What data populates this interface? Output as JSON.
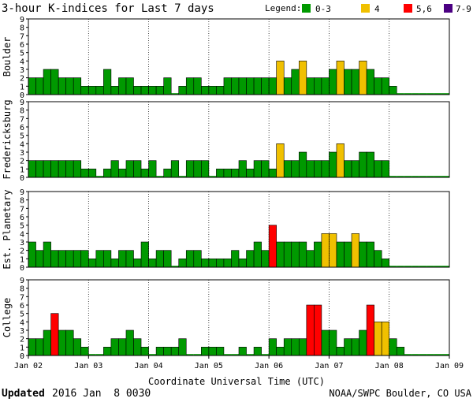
{
  "header": {
    "title": "3-hour K-indices for Last 7 days",
    "legend_label": "Legend:",
    "legend": [
      {
        "label": "0-3",
        "color": "#009900"
      },
      {
        "label": "4",
        "color": "#f0c000"
      },
      {
        "label": "5,6",
        "color": "#ff0000"
      },
      {
        "label": "7-9",
        "color": "#4b0082"
      }
    ]
  },
  "footer": {
    "updated_label": "Updated",
    "updated_value": "2016 Jan  8 0030",
    "credit": "NOAA/SWPC Boulder, CO USA"
  },
  "chart_data": {
    "type": "bar",
    "xlabel": "Coordinate Universal Time (UTC)",
    "x_ticks": [
      "Jan 02",
      "Jan 03",
      "Jan 04",
      "Jan 05",
      "Jan 06",
      "Jan 07",
      "Jan 08",
      "Jan 09"
    ],
    "ylim": [
      0,
      9
    ],
    "y_ticks": [
      0,
      1,
      2,
      3,
      4,
      5,
      6,
      7,
      8,
      9
    ],
    "panels": [
      {
        "name": "Boulder",
        "values": [
          2,
          2,
          3,
          3,
          2,
          2,
          2,
          1,
          1,
          1,
          3,
          1,
          2,
          2,
          1,
          1,
          1,
          1,
          2,
          0,
          1,
          2,
          2,
          1,
          1,
          1,
          2,
          2,
          2,
          2,
          2,
          2,
          2,
          4,
          2,
          3,
          4,
          2,
          2,
          2,
          3,
          4,
          3,
          3,
          4,
          3,
          2,
          2,
          1,
          0,
          0,
          0,
          0,
          0,
          0,
          0
        ]
      },
      {
        "name": "Fredericksburg",
        "values": [
          2,
          2,
          2,
          2,
          2,
          2,
          2,
          1,
          1,
          0,
          1,
          2,
          1,
          2,
          2,
          1,
          2,
          0,
          1,
          2,
          0,
          2,
          2,
          2,
          0,
          1,
          1,
          1,
          2,
          1,
          2,
          2,
          1,
          4,
          2,
          2,
          3,
          2,
          2,
          2,
          3,
          4,
          2,
          2,
          3,
          3,
          2,
          2,
          0,
          0,
          0,
          0,
          0,
          0,
          0,
          0
        ]
      },
      {
        "name": "Est. Planetary",
        "values": [
          3,
          2,
          3,
          2,
          2,
          2,
          2,
          2,
          1,
          2,
          2,
          1,
          2,
          2,
          1,
          3,
          1,
          2,
          2,
          0,
          1,
          2,
          2,
          1,
          1,
          1,
          1,
          2,
          1,
          2,
          3,
          2,
          5,
          3,
          3,
          3,
          3,
          2,
          3,
          4,
          4,
          3,
          3,
          4,
          3,
          3,
          2,
          1,
          0,
          0,
          0,
          0,
          0,
          0,
          0,
          0
        ]
      },
      {
        "name": "College",
        "values": [
          2,
          2,
          3,
          5,
          3,
          3,
          2,
          1,
          0,
          0,
          1,
          2,
          2,
          3,
          2,
          1,
          0,
          1,
          1,
          1,
          2,
          0,
          0,
          1,
          1,
          1,
          0,
          0,
          1,
          0,
          1,
          0,
          2,
          1,
          2,
          2,
          2,
          6,
          6,
          3,
          3,
          1,
          2,
          2,
          3,
          6,
          4,
          4,
          2,
          1,
          0,
          0,
          0,
          0,
          0,
          0
        ]
      }
    ]
  }
}
